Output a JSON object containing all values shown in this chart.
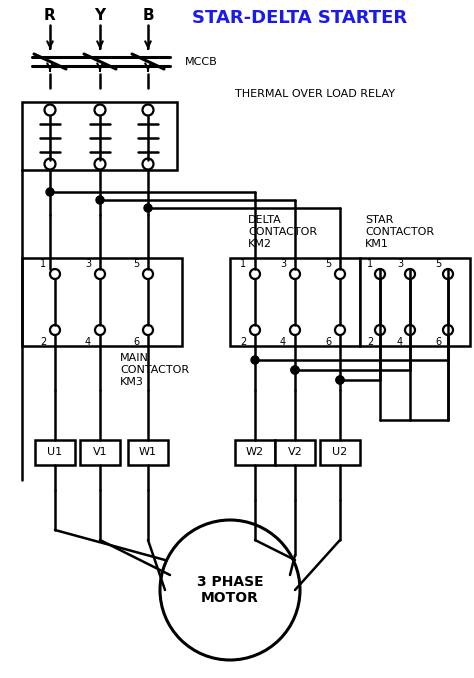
{
  "title": "STAR-DELTA STARTER",
  "title_color": "#1a1aee",
  "phases": [
    "R",
    "Y",
    "B"
  ],
  "mccb_label": "MCCB",
  "thermal_label": "THERMAL OVER LOAD RELAY",
  "delta_label": "DELTA\nCONTACTOR\nKM2",
  "star_label": "STAR\nCONTACTOR\nKM1",
  "main_label": "MAIN\nCONTACTOR\nKM3",
  "motor_label": "3 PHASE\nMOTOR",
  "fig_width": 4.74,
  "fig_height": 6.78,
  "dpi": 100
}
